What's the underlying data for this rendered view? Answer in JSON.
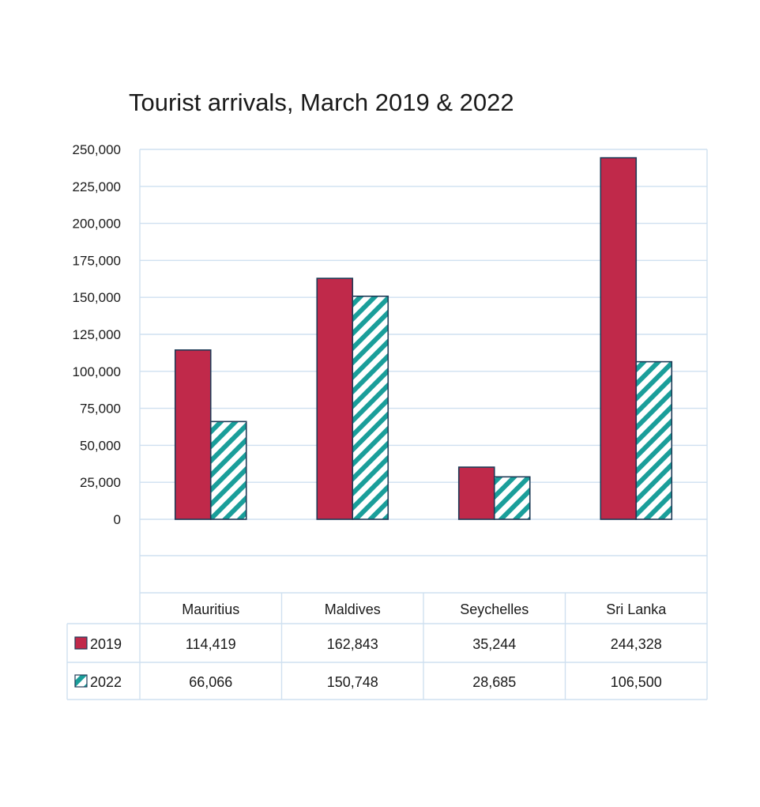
{
  "chart_data": {
    "type": "bar",
    "title": "Tourist arrivals, March 2019 & 2022",
    "categories": [
      "Mauritius",
      "Maldives",
      "Seychelles",
      "Sri Lanka"
    ],
    "series": [
      {
        "name": "2019",
        "values": [
          114419,
          162843,
          35244,
          244328
        ],
        "value_labels": [
          "114,419",
          "162,843",
          "35,244",
          "244,328"
        ],
        "color": "#c0294a",
        "pattern": "solid"
      },
      {
        "name": "2022",
        "values": [
          66066,
          150748,
          28685,
          106500
        ],
        "value_labels": [
          "66,066",
          "150,748",
          "28,685",
          "106,500"
        ],
        "color": "#1a9e9a",
        "pattern": "diagonal-stripes"
      }
    ],
    "ylim": [
      0,
      250000
    ],
    "yticks": [
      0,
      25000,
      50000,
      75000,
      100000,
      125000,
      150000,
      175000,
      200000,
      225000,
      250000
    ],
    "ytick_labels": [
      "0",
      "25,000",
      "50,000",
      "75,000",
      "100,000",
      "125,000",
      "150,000",
      "175,000",
      "200,000",
      "225,000",
      "250,000"
    ],
    "grid": true,
    "legend": "data-table",
    "edge_color": "#1f3b57"
  }
}
